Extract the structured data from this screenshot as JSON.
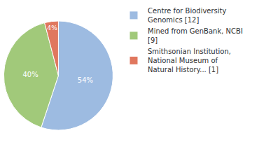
{
  "chart_data": {
    "type": "pie",
    "categories": [
      "Centre for Biodiversity Genomics [12]",
      "Mined from GenBank, NCBI [9]",
      "Smithsonian Institution, National Museum of Natural History... [1]"
    ],
    "values": [
      54,
      40,
      4
    ],
    "value_labels": [
      "54%",
      "40%",
      "4%"
    ],
    "colors": [
      "#9dbbe1",
      "#a1c97a",
      "#e0775e"
    ],
    "data_labels": true,
    "legend": "top right"
  }
}
